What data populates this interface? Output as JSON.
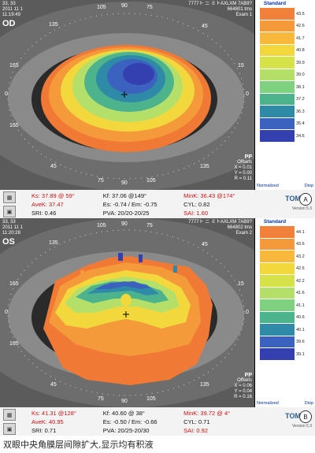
{
  "panel_a": {
    "header_left": {
      "line1": "33, 33",
      "date": "2011 11 1",
      "time": "11:19:49",
      "eye": "OD"
    },
    "header_right": {
      "line1": "7777ト ニ ミトAXLXM 7AB9?",
      "line2": "664801 tms",
      "line3": "Exam 1"
    },
    "axis": {
      "top1": "105",
      "top2": "90",
      "top3": "75",
      "upper_left": "135",
      "upper_right": "45",
      "mid_left": "165",
      "mid_right": "15",
      "zero_left": "0",
      "zero_right": "0",
      "lower_left": "165",
      "bottom1": "45",
      "bottom2": "75",
      "bottom3": "90",
      "bottom4": "105",
      "bottom_right": "135"
    },
    "offsets": {
      "pp": "PP",
      "label": "Offsets",
      "x": "X = 0.01",
      "y": "Y = 0.00",
      "r": "R = 0.11"
    },
    "scale": {
      "title": "Standard",
      "values": [
        "43.5",
        "42.6",
        "41.7",
        "40.8",
        "39.9",
        "39.0",
        "38.1",
        "37.2",
        "36.3",
        "35.4",
        "34.6"
      ],
      "colors": [
        "#f0803a",
        "#f59a3a",
        "#f7b83c",
        "#f2d83c",
        "#d5e24a",
        "#b4e06a",
        "#7fd07f",
        "#4db38d",
        "#2e8aa6",
        "#3c62c0",
        "#3440b0"
      ],
      "footer_left": "Normalized",
      "footer_right": "Diop"
    },
    "stats": {
      "ks": "Ks: 37.89 @ 59°",
      "kf": "Kf: 37.06 @149°",
      "mink": "MinK: 36.43 @174°",
      "avek": "AveK: 37.47",
      "es": "Es: -0.74 / Em: -0.75",
      "cyl": "CYL: 0.82",
      "sri": "SRI: 0.46",
      "pva": "PVA: 20/20-20/25",
      "sai": "SAI: 1.60"
    },
    "brand": {
      "logo": "TOM",
      "version": "Version 5.3",
      "badge": "A"
    }
  },
  "panel_b": {
    "header_left": {
      "line1": "33, 33",
      "date": "2011 11 1",
      "time": "11:20:28",
      "eye": "OS"
    },
    "header_right": {
      "line1": "7777ト ニ ミトAXLXM 7AB9?",
      "line2": "664802 tms",
      "line3": "Exam 2"
    },
    "axis": {
      "top1": "105",
      "top2": "90",
      "top3": "75",
      "upper_left": "135",
      "upper_right": "45",
      "mid_left": "165",
      "mid_right": "15",
      "zero_left": "0",
      "zero_right": "0",
      "lower_left": "165",
      "bottom1": "45",
      "bottom2": "75",
      "bottom3": "90",
      "bottom4": "105",
      "bottom_right": "135"
    },
    "offsets": {
      "pp": "PP",
      "label": "Offsets",
      "x": "X = 0.06",
      "y": "Y = 0.04",
      "r": "R = 0.16"
    },
    "scale": {
      "title": "Standard",
      "values": [
        "44.1",
        "43.6",
        "43.2",
        "42.6",
        "42.2",
        "41.6",
        "41.1",
        "40.6",
        "40.1",
        "39.6",
        "39.1"
      ],
      "colors": [
        "#f0803a",
        "#f59a3a",
        "#f7b83c",
        "#f2d83c",
        "#d5e24a",
        "#b4e06a",
        "#7fd07f",
        "#4db38d",
        "#2e8aa6",
        "#3c62c0",
        "#3440b0"
      ],
      "footer_left": "Normalized",
      "footer_right": "Diop"
    },
    "stats": {
      "ks": "Ks: 41.31 @128°",
      "kf": "Kf: 40.60 @ 38°",
      "mink": "MinK: 39.72 @  4°",
      "avek": "AveK: 40.95",
      "es": "Es: -0.50 / Em: -0.66",
      "cyl": "CYL: 0.71",
      "sri": "SRI: 0.71",
      "pva": "PVA: 20/25-20/30",
      "sai": "SAI: 0.92"
    },
    "brand": {
      "logo": "TOM",
      "version": "Version 5.3",
      "badge": "B"
    }
  },
  "caption": "双眼中央角膜层间隙扩大,显示均有积液"
}
